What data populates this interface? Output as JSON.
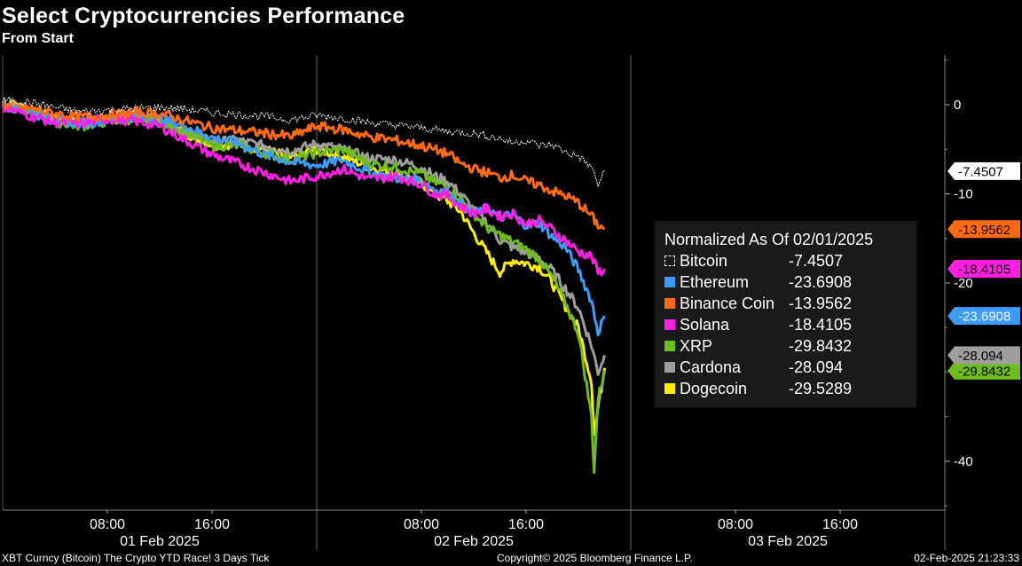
{
  "header": {
    "title": "Select Cryptocurrencies Performance",
    "subtitle": "From Start"
  },
  "legend": {
    "title": "Normalized As Of 02/01/2025"
  },
  "footer": {
    "left": "XBT Curncy (Bitcoin) The Crypto YTD Race! 3 Days  Tick",
    "center": "Copyright© 2025 Bloomberg Finance L.P.",
    "right": "02-Feb-2025 21:23:33"
  },
  "chart_data": {
    "type": "line",
    "title": "Select Cryptocurrencies Performance",
    "subtitle": "From Start",
    "x_unit": "hours",
    "x_range": [
      "2025-02-01 00:00",
      "2025-02-04 00:00"
    ],
    "ylim": [
      -45,
      5
    ],
    "y_ticks": [
      0,
      -10,
      -20,
      -40
    ],
    "y_tick_labels": [
      "0",
      "-10",
      "-20",
      "-40"
    ],
    "x_ticks_hours": [
      8,
      16,
      32,
      40,
      56,
      64
    ],
    "x_tick_labels": [
      "08:00",
      "16:00",
      "08:00",
      "16:00",
      "08:00",
      "16:00"
    ],
    "day_labels": [
      {
        "hour": 12,
        "label": "01 Feb 2025"
      },
      {
        "hour": 36,
        "label": "02 Feb 2025"
      },
      {
        "hour": 60,
        "label": "03 Feb 2025"
      }
    ],
    "day_boundaries_hours": [
      24,
      48
    ],
    "legend_position": "right",
    "series": [
      {
        "name": "Bitcoin",
        "color": "#ffffff",
        "last": -7.4507,
        "last_label": "-7.4507",
        "label_fill": "#ffffff",
        "label_text": "#000000",
        "hollow": true,
        "points": [
          [
            0,
            0.5
          ],
          [
            2,
            0.3
          ],
          [
            4,
            -0.3
          ],
          [
            6,
            -0.8
          ],
          [
            8,
            -0.6
          ],
          [
            10,
            -0.4
          ],
          [
            12,
            -0.3
          ],
          [
            14,
            -0.5
          ],
          [
            16,
            -0.9
          ],
          [
            18,
            -1.1
          ],
          [
            20,
            -1.3
          ],
          [
            22,
            -1.7
          ],
          [
            24,
            -1.2
          ],
          [
            26,
            -1.5
          ],
          [
            28,
            -2.0
          ],
          [
            30,
            -2.3
          ],
          [
            32,
            -2.6
          ],
          [
            34,
            -3.0
          ],
          [
            36,
            -3.2
          ],
          [
            38,
            -3.8
          ],
          [
            39,
            -4.3
          ],
          [
            40,
            -4.0
          ],
          [
            41,
            -4.6
          ],
          [
            42,
            -4.5
          ],
          [
            43,
            -5.3
          ],
          [
            44,
            -5.8
          ],
          [
            45,
            -7.0
          ],
          [
            45.5,
            -9.0
          ],
          [
            46,
            -7.45
          ]
        ]
      },
      {
        "name": "Ethereum",
        "color": "#3d9bff",
        "last": -23.6908,
        "last_label": "-23.6908",
        "label_fill": "#3d9bff",
        "label_text": "#ffffff",
        "points": [
          [
            0,
            0
          ],
          [
            2,
            -0.8
          ],
          [
            4,
            -1.8
          ],
          [
            6,
            -2.1
          ],
          [
            8,
            -1.7
          ],
          [
            10,
            -1.4
          ],
          [
            12,
            -1.6
          ],
          [
            14,
            -2.4
          ],
          [
            16,
            -3.7
          ],
          [
            18,
            -4.3
          ],
          [
            20,
            -5.6
          ],
          [
            22,
            -6.4
          ],
          [
            24,
            -6.8
          ],
          [
            26,
            -6.2
          ],
          [
            28,
            -7.6
          ],
          [
            30,
            -8.2
          ],
          [
            32,
            -8.5
          ],
          [
            33,
            -9.5
          ],
          [
            34,
            -9.8
          ],
          [
            35,
            -11.2
          ],
          [
            36,
            -12.3
          ],
          [
            37,
            -11.6
          ],
          [
            38,
            -12.6
          ],
          [
            39,
            -12.4
          ],
          [
            40,
            -13.5
          ],
          [
            41,
            -13.3
          ],
          [
            42,
            -14.8
          ],
          [
            43,
            -16.0
          ],
          [
            44,
            -18.5
          ],
          [
            45,
            -22.0
          ],
          [
            45.5,
            -25.5
          ],
          [
            46,
            -23.69
          ]
        ]
      },
      {
        "name": "Binance Coin",
        "color": "#ff6a12",
        "last": -13.9562,
        "last_label": "-13.9562",
        "label_fill": "#ff6a12",
        "label_text": "#000000",
        "points": [
          [
            0,
            0
          ],
          [
            2,
            -0.4
          ],
          [
            4,
            -1.0
          ],
          [
            6,
            -1.4
          ],
          [
            8,
            -1.2
          ],
          [
            10,
            -0.9
          ],
          [
            12,
            -1.0
          ],
          [
            14,
            -1.8
          ],
          [
            16,
            -2.6
          ],
          [
            18,
            -2.9
          ],
          [
            20,
            -3.2
          ],
          [
            22,
            -3.6
          ],
          [
            24,
            -2.4
          ],
          [
            26,
            -2.8
          ],
          [
            28,
            -3.6
          ],
          [
            30,
            -4.0
          ],
          [
            32,
            -4.6
          ],
          [
            34,
            -5.5
          ],
          [
            35,
            -6.6
          ],
          [
            36,
            -7.2
          ],
          [
            37,
            -7.6
          ],
          [
            38,
            -8.2
          ],
          [
            39,
            -7.9
          ],
          [
            40,
            -8.6
          ],
          [
            41,
            -9.0
          ],
          [
            42,
            -9.7
          ],
          [
            43,
            -10.2
          ],
          [
            44,
            -11.0
          ],
          [
            45,
            -12.5
          ],
          [
            45.5,
            -13.5
          ],
          [
            46,
            -13.96
          ]
        ]
      },
      {
        "name": "Solana",
        "color": "#ff1fe3",
        "last": -18.4105,
        "last_label": "-18.4105",
        "label_fill": "#ff1fe3",
        "label_text": "#000000",
        "points": [
          [
            0,
            -0.2
          ],
          [
            2,
            -1.2
          ],
          [
            4,
            -2.0
          ],
          [
            6,
            -2.1
          ],
          [
            8,
            -1.6
          ],
          [
            10,
            -1.8
          ],
          [
            12,
            -2.4
          ],
          [
            14,
            -4.0
          ],
          [
            16,
            -5.6
          ],
          [
            18,
            -6.6
          ],
          [
            20,
            -7.6
          ],
          [
            22,
            -8.6
          ],
          [
            24,
            -8.0
          ],
          [
            26,
            -7.2
          ],
          [
            28,
            -8.4
          ],
          [
            30,
            -8.0
          ],
          [
            32,
            -8.9
          ],
          [
            33,
            -10.0
          ],
          [
            34,
            -10.2
          ],
          [
            35,
            -11.4
          ],
          [
            36,
            -12.2
          ],
          [
            37,
            -11.7
          ],
          [
            38,
            -12.5
          ],
          [
            39,
            -12.2
          ],
          [
            40,
            -13.4
          ],
          [
            41,
            -13.0
          ],
          [
            42,
            -14.0
          ],
          [
            43,
            -15.2
          ],
          [
            44,
            -16.5
          ],
          [
            45,
            -17.0
          ],
          [
            45.5,
            -18.8
          ],
          [
            46,
            -18.41
          ]
        ]
      },
      {
        "name": "XRP",
        "color": "#6fbd1c",
        "last": -29.8432,
        "last_label": "-29.8432",
        "label_fill": "#6fbd1c",
        "label_text": "#000000",
        "points": [
          [
            0,
            0.3
          ],
          [
            2,
            -0.7
          ],
          [
            4,
            -1.9
          ],
          [
            6,
            -2.4
          ],
          [
            8,
            -1.9
          ],
          [
            10,
            -1.6
          ],
          [
            12,
            -1.9
          ],
          [
            14,
            -3.1
          ],
          [
            16,
            -4.6
          ],
          [
            18,
            -4.6
          ],
          [
            20,
            -5.4
          ],
          [
            22,
            -6.2
          ],
          [
            24,
            -5.4
          ],
          [
            26,
            -5.0
          ],
          [
            28,
            -6.6
          ],
          [
            30,
            -7.0
          ],
          [
            32,
            -7.8
          ],
          [
            33,
            -8.7
          ],
          [
            34,
            -9.2
          ],
          [
            35,
            -10.6
          ],
          [
            36,
            -12.2
          ],
          [
            37,
            -13.8
          ],
          [
            38,
            -14.6
          ],
          [
            39,
            -15.4
          ],
          [
            40,
            -16.2
          ],
          [
            41,
            -17.3
          ],
          [
            42,
            -19.4
          ],
          [
            43,
            -22.2
          ],
          [
            44,
            -25.6
          ],
          [
            45,
            -35.0
          ],
          [
            45.2,
            -41.0
          ],
          [
            45.5,
            -33.0
          ],
          [
            46,
            -29.84
          ]
        ]
      },
      {
        "name": "Cardona",
        "color": "#9e9e9e",
        "last": -28.094,
        "last_label": "-28.094",
        "label_fill": "#9e9e9e",
        "label_text": "#000000",
        "points": [
          [
            0,
            0.2
          ],
          [
            2,
            -0.6
          ],
          [
            4,
            -1.6
          ],
          [
            6,
            -1.9
          ],
          [
            8,
            -1.5
          ],
          [
            10,
            -1.2
          ],
          [
            12,
            -1.6
          ],
          [
            14,
            -3.0
          ],
          [
            16,
            -4.2
          ],
          [
            18,
            -4.0
          ],
          [
            20,
            -4.6
          ],
          [
            22,
            -5.2
          ],
          [
            24,
            -4.4
          ],
          [
            26,
            -5.0
          ],
          [
            28,
            -6.0
          ],
          [
            30,
            -6.2
          ],
          [
            32,
            -7.0
          ],
          [
            33,
            -8.0
          ],
          [
            34,
            -8.6
          ],
          [
            35,
            -10.0
          ],
          [
            36,
            -11.8
          ],
          [
            37,
            -13.2
          ],
          [
            38,
            -15.2
          ],
          [
            39,
            -16.0
          ],
          [
            40,
            -16.6
          ],
          [
            41,
            -17.2
          ],
          [
            42,
            -18.6
          ],
          [
            43,
            -20.6
          ],
          [
            44,
            -22.8
          ],
          [
            45,
            -27.0
          ],
          [
            45.5,
            -30.0
          ],
          [
            46,
            -28.09
          ]
        ]
      },
      {
        "name": "Dogecoin",
        "color": "#ffee00",
        "last": -29.5289,
        "last_label": "",
        "label_fill": "",
        "label_text": "",
        "points": [
          [
            0,
            0.4
          ],
          [
            2,
            -0.5
          ],
          [
            4,
            -1.5
          ],
          [
            6,
            -2.0
          ],
          [
            8,
            -1.6
          ],
          [
            10,
            -1.3
          ],
          [
            12,
            -1.8
          ],
          [
            14,
            -3.2
          ],
          [
            16,
            -4.5
          ],
          [
            18,
            -4.4
          ],
          [
            20,
            -5.0
          ],
          [
            22,
            -6.0
          ],
          [
            24,
            -5.0
          ],
          [
            26,
            -5.8
          ],
          [
            28,
            -7.0
          ],
          [
            30,
            -7.6
          ],
          [
            32,
            -8.8
          ],
          [
            33,
            -10.0
          ],
          [
            34,
            -10.8
          ],
          [
            35,
            -12.0
          ],
          [
            36,
            -14.4
          ],
          [
            37,
            -16.6
          ],
          [
            38,
            -18.8
          ],
          [
            39,
            -17.4
          ],
          [
            40,
            -17.8
          ],
          [
            41,
            -18.2
          ],
          [
            42,
            -20.0
          ],
          [
            43,
            -22.6
          ],
          [
            44,
            -25.0
          ],
          [
            45,
            -31.0
          ],
          [
            45.2,
            -37.0
          ],
          [
            45.5,
            -34.0
          ],
          [
            46,
            -29.53
          ]
        ]
      }
    ]
  }
}
